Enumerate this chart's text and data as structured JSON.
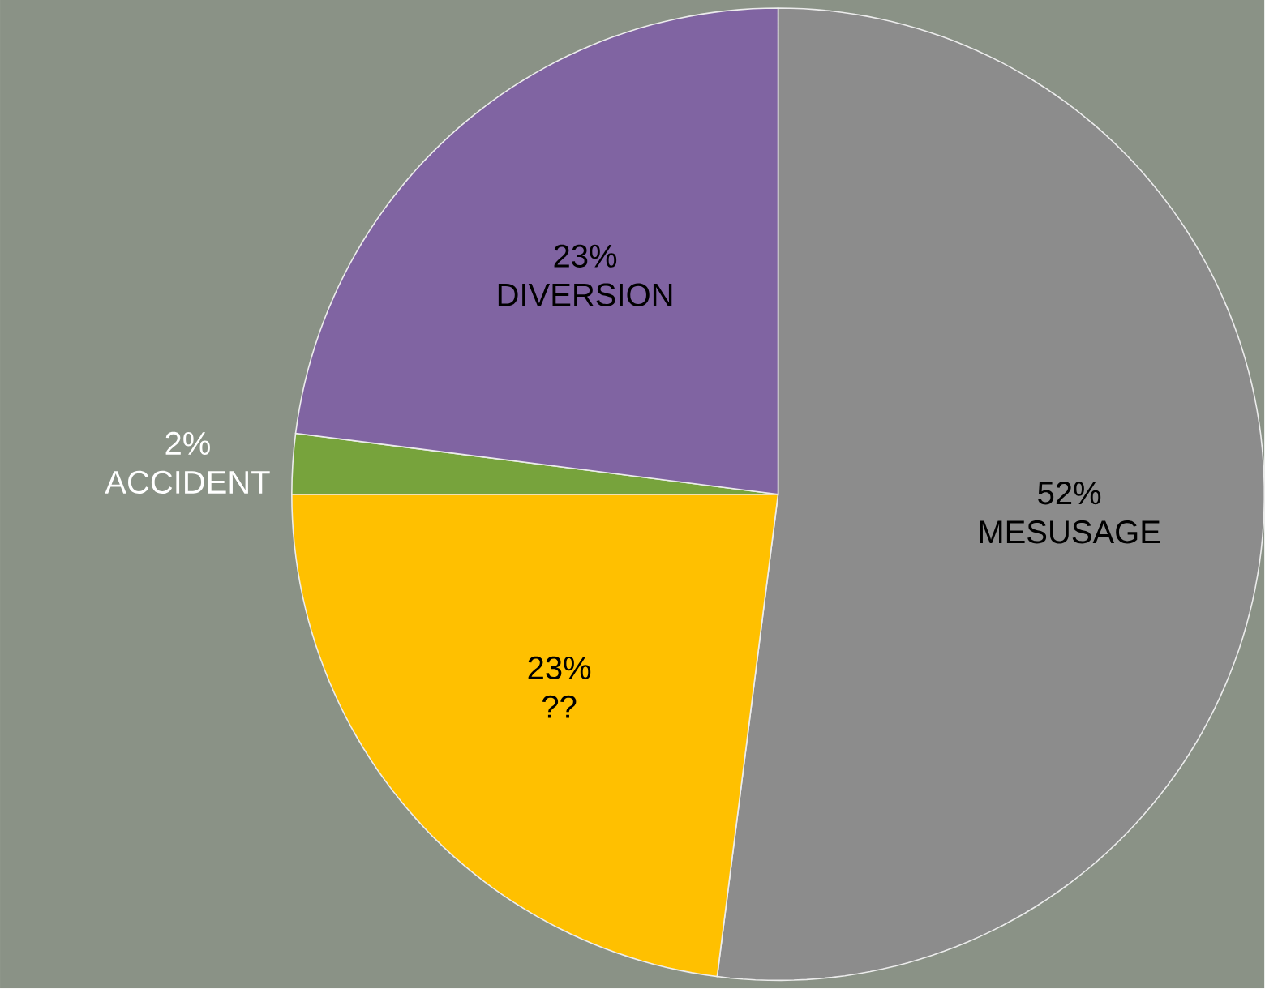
{
  "chart_data": {
    "type": "pie",
    "categories": [
      "MESUSAGE",
      "??",
      "ACCIDENT",
      "DIVERSION"
    ],
    "values": [
      52,
      23,
      2,
      23
    ],
    "value_labels": [
      "52%",
      "23%",
      "2%",
      "23%"
    ],
    "colors": [
      "#8c8c8c",
      "#ffc000",
      "#77a33c",
      "#8064a2"
    ]
  }
}
